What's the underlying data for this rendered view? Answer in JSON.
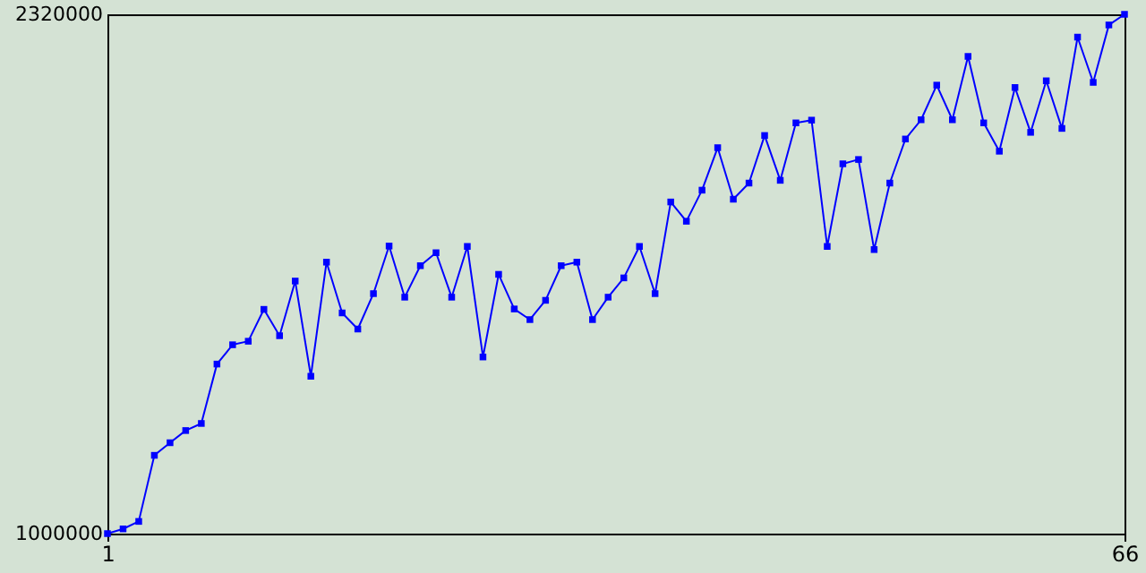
{
  "chart_data": {
    "type": "line",
    "marker": "square",
    "line_style": "solid",
    "grid": false,
    "x": [
      1,
      2,
      3,
      4,
      5,
      6,
      7,
      8,
      9,
      10,
      11,
      12,
      13,
      14,
      15,
      16,
      17,
      18,
      19,
      20,
      21,
      22,
      23,
      24,
      25,
      26,
      27,
      28,
      29,
      30,
      31,
      32,
      33,
      34,
      35,
      36,
      37,
      38,
      39,
      40,
      41,
      42,
      43,
      44,
      45,
      46,
      47,
      48,
      49,
      50,
      51,
      52,
      53,
      54,
      55,
      56,
      57,
      58,
      59,
      60,
      61,
      62,
      63,
      64,
      65,
      66
    ],
    "series": [
      {
        "color": "#0000ff",
        "values": [
          1000000,
          1012000,
          1031000,
          1199000,
          1231000,
          1262000,
          1280000,
          1431000,
          1480000,
          1489000,
          1570000,
          1503000,
          1642000,
          1400000,
          1690000,
          1561000,
          1520000,
          1610000,
          1731000,
          1601000,
          1681000,
          1714000,
          1601000,
          1730000,
          1449000,
          1659000,
          1571000,
          1544000,
          1593000,
          1681000,
          1690000,
          1544000,
          1601000,
          1650000,
          1730000,
          1610000,
          1843000,
          1794000,
          1873000,
          1981000,
          1850000,
          1891000,
          2012000,
          1898000,
          2044000,
          2051000,
          1730000,
          1940000,
          1951000,
          1722000,
          1891000,
          2003000,
          2052000,
          2140000,
          2052000,
          2213000,
          2044000,
          1972000,
          2134000,
          2020000,
          2151000,
          2030000,
          2262000,
          2147000,
          2293000,
          2320000
        ]
      }
    ],
    "xlim": [
      1,
      66
    ],
    "xticks": [
      1,
      66
    ],
    "ylim": [
      1000000,
      2320000
    ],
    "yticks": [
      {
        "value": 1000000,
        "label": "1000000"
      },
      {
        "value": 2320000,
        "label": "2320000"
      }
    ]
  }
}
